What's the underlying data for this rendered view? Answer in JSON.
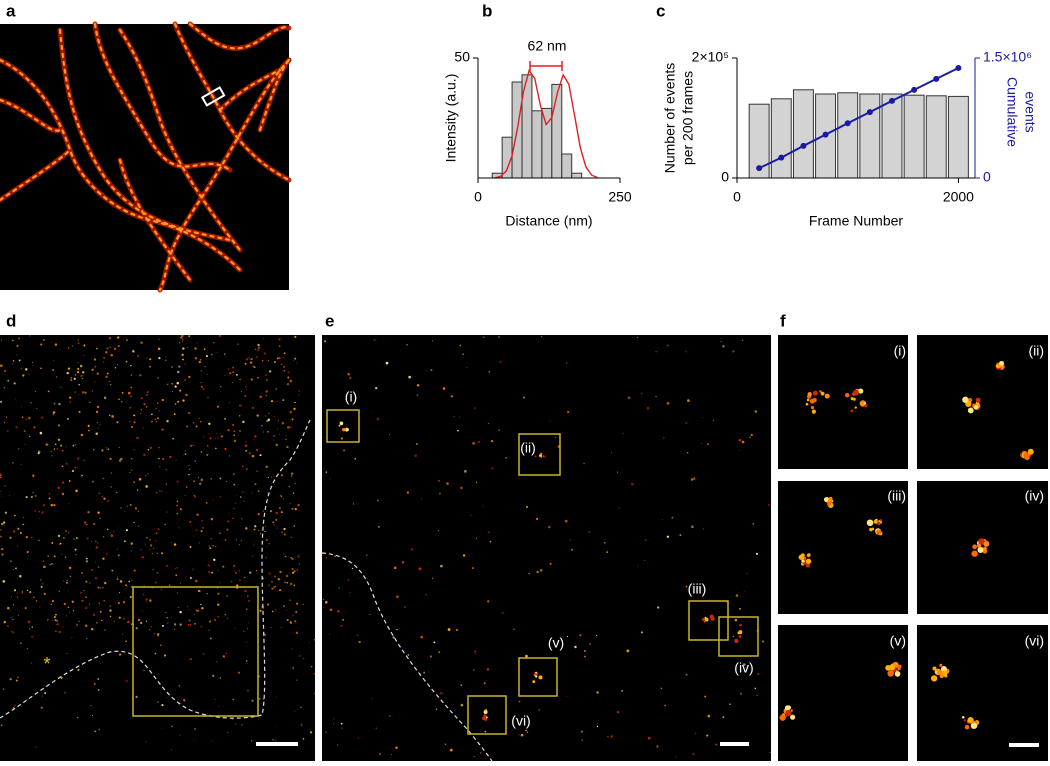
{
  "panel_labels": [
    "a",
    "b",
    "c",
    "d",
    "e",
    "f"
  ],
  "roi_labels": [
    "(i)",
    "(ii)",
    "(iii)",
    "(iv)",
    "(v)",
    "(vi)"
  ],
  "d_marker": "*",
  "chart_data": [
    {
      "type": "histogram",
      "xlabel": "Distance (nm)",
      "ylabel": "Intensity (a.u.)",
      "annotation": "62 nm",
      "bins": [
        25,
        42.5,
        60,
        77.5,
        95,
        112.5,
        130,
        147.5,
        165,
        182.5
      ],
      "values": [
        2,
        17,
        40,
        43,
        28,
        29,
        39,
        10,
        2
      ],
      "color": "#c8c8c8",
      "fit": {
        "color": "#e02020",
        "x": [
          30,
          40,
          50,
          60,
          70,
          80,
          90,
          100,
          110,
          120,
          130,
          140,
          150,
          160,
          170,
          180,
          190,
          200,
          210
        ],
        "y": [
          0.1,
          0.7,
          3.0,
          9.3,
          21.3,
          36.0,
          44.8,
          41.4,
          30.1,
          22.3,
          25.2,
          35.7,
          43.0,
          39.0,
          26.1,
          12.8,
          4.6,
          1.2,
          0.2
        ]
      },
      "xlim": [
        0,
        250
      ],
      "xticks": [
        0,
        250
      ],
      "ylim": [
        0,
        50
      ],
      "yticks": [
        50
      ]
    },
    {
      "type": "bar",
      "xlabel": "Frame Number",
      "ylabel": [
        "Number of events",
        "per 200 frames"
      ],
      "y2label": [
        "Cumulative",
        "events"
      ],
      "x": [
        200,
        400,
        600,
        800,
        1000,
        1200,
        1400,
        1600,
        1800,
        2000
      ],
      "series": [
        {
          "type": "bar",
          "color": "#d3d3d3",
          "values": [
            123000,
            132000,
            147000,
            140000,
            142000,
            140000,
            140000,
            138000,
            137000,
            136000
          ]
        },
        {
          "type": "line",
          "axis": "y2",
          "color": "#1a1aa6",
          "values": [
            123000,
            255000,
            402000,
            542000,
            684000,
            824000,
            964000,
            1102000,
            1239000,
            1375000
          ]
        }
      ],
      "xlim": [
        0,
        2150
      ],
      "xticks": [
        0,
        2000
      ],
      "ylim": [
        0,
        200000
      ],
      "yticks": [
        0,
        {
          "value": 200000,
          "label": "2×10⁵"
        }
      ],
      "y2lim": [
        0,
        1500000
      ],
      "y2ticks": [
        0,
        {
          "value": 1500000,
          "label": "1.5×10⁶"
        }
      ]
    }
  ]
}
